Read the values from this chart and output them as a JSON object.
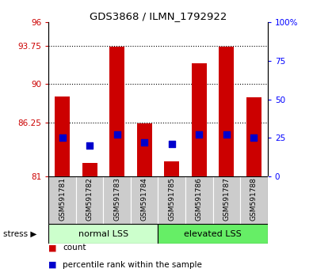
{
  "title": "GDS3868 / ILMN_1792922",
  "samples": [
    "GSM591781",
    "GSM591782",
    "GSM591783",
    "GSM591784",
    "GSM591785",
    "GSM591786",
    "GSM591787",
    "GSM591788"
  ],
  "counts": [
    88.8,
    82.3,
    93.65,
    86.15,
    82.5,
    92.0,
    93.65,
    88.7
  ],
  "percentile_ranks": [
    25.0,
    20.0,
    27.0,
    22.0,
    21.0,
    27.0,
    27.0,
    25.0
  ],
  "ylim_left": [
    81,
    96
  ],
  "ylim_right": [
    0,
    100
  ],
  "yticks_left": [
    81,
    86.25,
    90,
    93.75,
    96
  ],
  "yticks_right": [
    0,
    25,
    50,
    75,
    100
  ],
  "ytick_labels_left": [
    "81",
    "86.25",
    "90",
    "93.75",
    "96"
  ],
  "ytick_labels_right": [
    "0",
    "25",
    "50",
    "75",
    "100%"
  ],
  "hlines": [
    86.25,
    90,
    93.75
  ],
  "bar_color": "#cc0000",
  "dot_color": "#0000cc",
  "group1_label": "normal LSS",
  "group2_label": "elevated LSS",
  "group1_color": "#ccffcc",
  "group2_color": "#66ee66",
  "stress_label": "stress ▶",
  "legend_count": "count",
  "legend_percentile": "percentile rank within the sample",
  "tick_bg_color": "#cccccc",
  "bar_bottom": 81,
  "bar_width": 0.55,
  "dot_size": 28
}
